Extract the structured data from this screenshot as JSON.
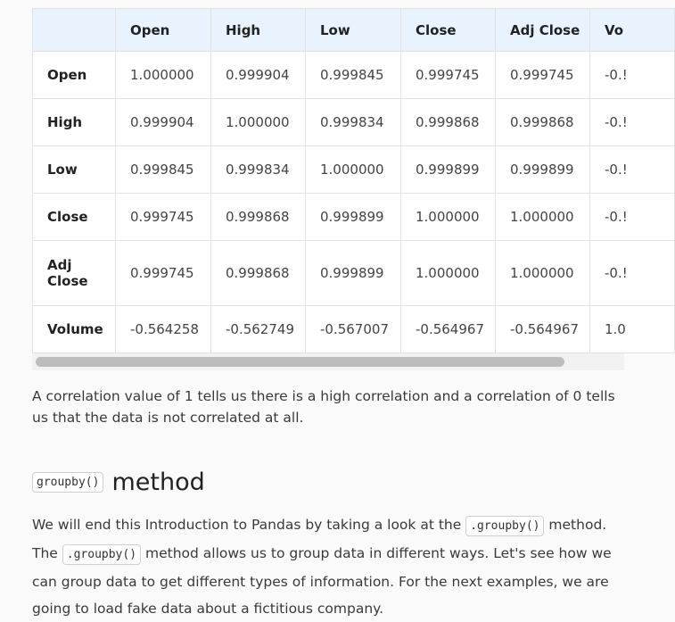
{
  "table": {
    "columns": [
      "Open",
      "High",
      "Low",
      "Close",
      "Adj Close",
      "Vo"
    ],
    "rows": [
      {
        "label": "Open",
        "values": [
          "1.000000",
          "0.999904",
          "0.999845",
          "0.999745",
          "0.999745",
          "-0.!"
        ]
      },
      {
        "label": "High",
        "values": [
          "0.999904",
          "1.000000",
          "0.999834",
          "0.999868",
          "0.999868",
          "-0.!"
        ]
      },
      {
        "label": "Low",
        "values": [
          "0.999845",
          "0.999834",
          "1.000000",
          "0.999899",
          "0.999899",
          "-0.!"
        ]
      },
      {
        "label": "Close",
        "values": [
          "0.999745",
          "0.999868",
          "0.999899",
          "1.000000",
          "1.000000",
          "-0.!"
        ]
      },
      {
        "label": "Adj Close",
        "values": [
          "0.999745",
          "0.999868",
          "0.999899",
          "1.000000",
          "1.000000",
          "-0.!"
        ]
      },
      {
        "label": "Volume",
        "values": [
          "-0.564258",
          "-0.562749",
          "-0.567007",
          "-0.564967",
          "-0.564967",
          "1.0"
        ]
      }
    ]
  },
  "paragraph1": "A correlation value of 1 tells us there is a high correlation and a correlation of 0 tells us that the data is not correlated at all.",
  "section": {
    "code": "groupby()",
    "title": "method"
  },
  "paragraph2": {
    "part1": "We will end this Introduction to Pandas by taking a look at the",
    "code1": ".groupby()",
    "part2": "method. The",
    "code2": ".groupby()",
    "part3": "method allows us to group data in different ways. Let's see how we can group data to get different types of information. For the next examples, we are going to load fake data about a fictitious company."
  }
}
